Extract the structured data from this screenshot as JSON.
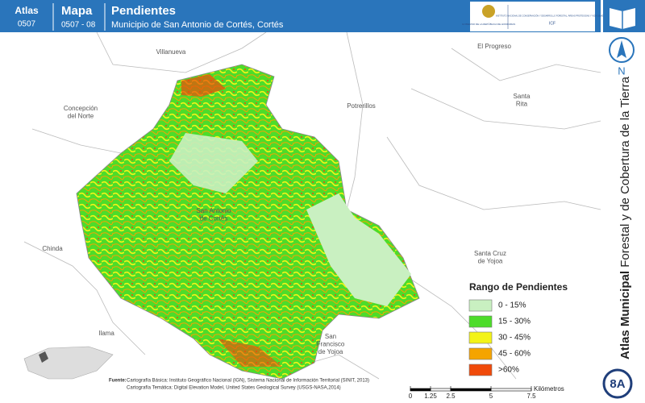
{
  "header": {
    "atlas_label": "Atlas",
    "atlas_code": "0507",
    "map_label": "Mapa",
    "map_code": "0507 - 08",
    "title": "Pendientes",
    "subtitle": "Municipio de San Antonio de Cortés, Cortés",
    "logo_left": "GOBIERNO DE LA REPÚBLICA DE HONDURAS",
    "logo_right": "INSTITUTO NACIONAL DE CONSERVACIÓN Y DESARROLLO FORESTAL, ÁREAS PROTEGIDAS Y VIDA SILVESTRE",
    "logo_right_short": "ICF"
  },
  "sidebar": {
    "north": "N",
    "atlas_bold": "Atlas Municipal",
    "atlas_rest": " Forestal y de Cobertura de la Tierra",
    "page": "8A"
  },
  "places": [
    {
      "lines": [
        "Villanueva"
      ]
    },
    {
      "lines": [
        "El Progreso"
      ]
    },
    {
      "lines": [
        "Concepción",
        "del Norte"
      ]
    },
    {
      "lines": [
        "Potrerillos"
      ]
    },
    {
      "lines": [
        "Santa",
        "Rita"
      ]
    },
    {
      "lines": [
        "San Antonio",
        "de Cortés"
      ]
    },
    {
      "lines": [
        "Chinda"
      ]
    },
    {
      "lines": [
        "Santa Cruz",
        "de Yojoa"
      ]
    },
    {
      "lines": [
        "Ilama"
      ]
    },
    {
      "lines": [
        "San",
        "Francisco",
        "de Yojoa"
      ]
    }
  ],
  "legend": {
    "title": "Rango de Pendientes",
    "items": [
      {
        "label": "0 - 15%",
        "color": "#c9f0c1"
      },
      {
        "label": "15 - 30%",
        "color": "#4ddc2a"
      },
      {
        "label": "30 - 45%",
        "color": "#f3f318"
      },
      {
        "label": "45 - 60%",
        "color": "#f5a400"
      },
      {
        "label": ">60%",
        "color": "#f04a0a"
      }
    ]
  },
  "source": {
    "label": "Fuente:",
    "line1": "Cartografía Básica: Instituto Geográfico Nacional (IGN), Sistema Nacional de Información Territorial (SINIT, 2013)",
    "line2": "Cartografía Temática: Digital Elevation Model, United States Geological Survey (USGS-NASA,2014)"
  },
  "scale": {
    "ticks": [
      0,
      1.25,
      2.5,
      5,
      7.5
    ],
    "unit": "Kilómetros"
  }
}
